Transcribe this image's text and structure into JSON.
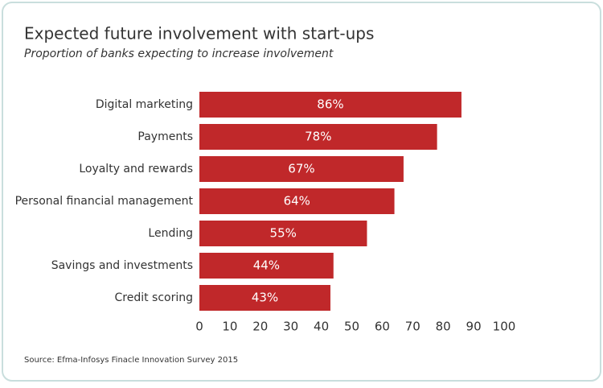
{
  "chart_data": {
    "type": "bar",
    "orientation": "horizontal",
    "title": "Expected future involvement with start-ups",
    "subtitle": "Proportion of banks expecting to increase involvement",
    "categories": [
      "Digital marketing",
      "Payments",
      "Loyalty and rewards",
      "Personal financial management",
      "Lending",
      "Savings and investments",
      "Credit scoring"
    ],
    "values": [
      86,
      78,
      67,
      64,
      55,
      44,
      43
    ],
    "value_labels": [
      "86%",
      "78%",
      "67%",
      "64%",
      "55%",
      "44%",
      "43%"
    ],
    "color": "#c0282a",
    "xlim": [
      0,
      100
    ],
    "xticks": [
      0,
      10,
      20,
      30,
      40,
      50,
      60,
      70,
      80,
      90,
      100
    ],
    "grid": false,
    "source": "Source: Efma-Infosys Finacle Innovation Survey 2015"
  }
}
